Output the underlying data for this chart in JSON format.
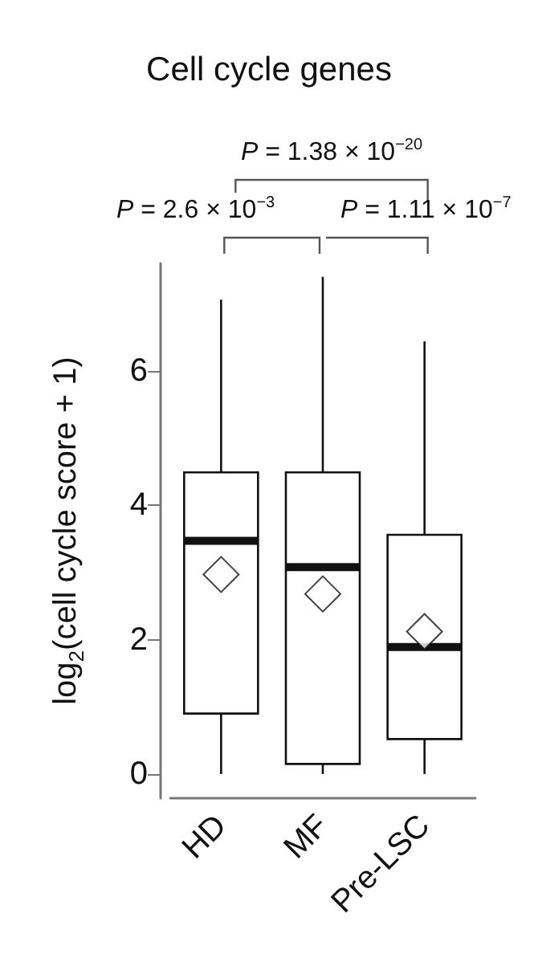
{
  "chart_data": {
    "type": "box",
    "title": "Cell cycle genes",
    "ylabel": "log$_{2}$(cell cycle score + 1)",
    "categories": [
      "HD",
      "MF",
      "Pre-LSC"
    ],
    "boxes": [
      {
        "low": 0,
        "q1": 0.9,
        "median": 3.47,
        "q3": 4.49,
        "high": 7.06,
        "mean": 2.97
      },
      {
        "low": 0,
        "q1": 0.15,
        "median": 3.08,
        "q3": 4.49,
        "high": 7.4,
        "mean": 2.68
      },
      {
        "low": 0,
        "q1": 0.52,
        "median": 1.89,
        "q3": 3.56,
        "high": 6.44,
        "mean": 2.12
      }
    ],
    "ylim": [
      -0.36,
      7.6
    ],
    "yticks": [
      0,
      2,
      4,
      6
    ],
    "grid": false,
    "annotations": [
      "P = 1.38 × 10$^{−20}$",
      "P = 2.6 × 10$^{−3}$",
      "P = 1.11 × 10$^{−7}$"
    ]
  }
}
